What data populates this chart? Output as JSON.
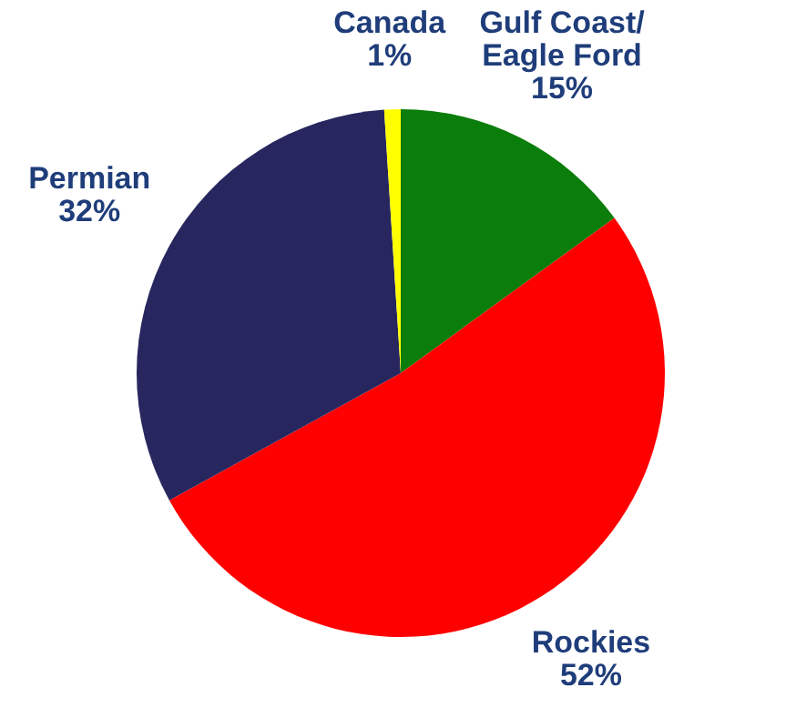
{
  "chart_data": {
    "type": "pie",
    "categories": [
      "Gulf Coast/ Eagle Ford",
      "Rockies",
      "Permian",
      "Canada"
    ],
    "values": [
      15,
      52,
      32,
      1
    ],
    "value_labels": [
      "15%",
      "52%",
      "32%",
      "1%"
    ],
    "colors": [
      "#0a7d0a",
      "#ff0000",
      "#27265f",
      "#ffff00"
    ]
  }
}
